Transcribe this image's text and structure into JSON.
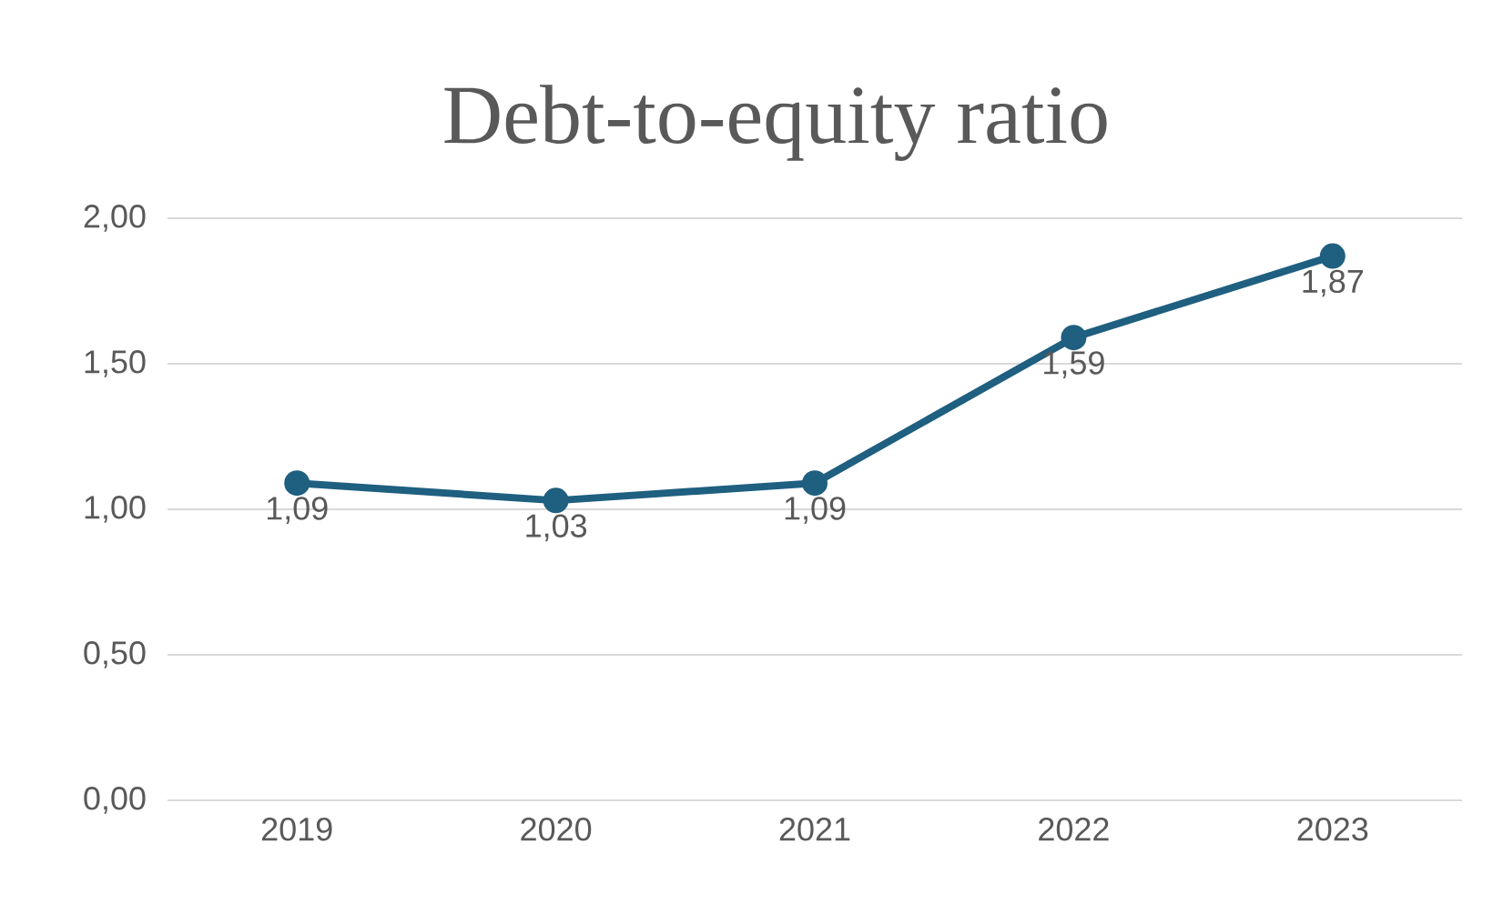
{
  "chart_data": {
    "type": "line",
    "title": "Debt-to-equity ratio",
    "categories": [
      "2019",
      "2020",
      "2021",
      "2022",
      "2023"
    ],
    "series": [
      {
        "color": "#1f5f80",
        "values": [
          1.09,
          1.03,
          1.09,
          1.59,
          1.87
        ],
        "value_labels": [
          "1,09",
          "1,03",
          "1,09",
          "1,59",
          "1,87"
        ]
      }
    ],
    "ylim": [
      0,
      2
    ],
    "yticks": [
      {
        "value": 0,
        "label": "0,00"
      },
      {
        "value": 0.5,
        "label": "0,50"
      },
      {
        "value": 1,
        "label": "1,00"
      },
      {
        "value": 1.5,
        "label": "1,50"
      },
      {
        "value": 2,
        "label": "2,00"
      }
    ],
    "grid": "y",
    "marker": "circle",
    "line_style": "solid"
  }
}
